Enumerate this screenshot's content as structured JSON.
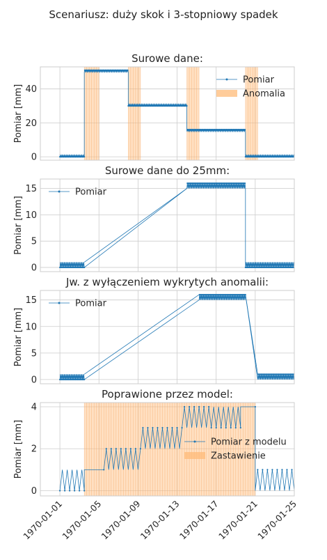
{
  "suptitle": "Scenariusz: duży skok i 3-stopniowy spadek",
  "colors": {
    "series": "#1f77b4",
    "anomaly_fill": "#ffbb78",
    "grid": "#cccccc",
    "axes_edge": "#cccccc",
    "background": "#ffffff"
  },
  "x_axis": {
    "type": "date",
    "range": [
      "1969-12-30",
      "1970-01-25"
    ],
    "tick_labels": [
      "1970-01-01",
      "1970-01-05",
      "1970-01-09",
      "1970-01-13",
      "1970-01-17",
      "1970-01-21",
      "1970-01-25"
    ],
    "tick_rotation_deg": 45
  },
  "chart_data": [
    {
      "type": "line",
      "title": "Surowe dane:",
      "ylabel": "Pomiar [mm]",
      "ylim": [
        -2,
        53
      ],
      "yticks": [
        0,
        20,
        40
      ],
      "legend_position": "top-right",
      "legend": [
        "Pomiar",
        "Anomalia"
      ],
      "oscillation": {
        "amplitude": 1,
        "period_days": 0.1
      },
      "series": [
        {
          "name": "Pomiar",
          "segments": [
            {
              "start": "1970-01-01",
              "end": "1970-01-03 12:00",
              "level": 0
            },
            {
              "start": "1970-01-03 12:00",
              "end": "1970-01-08",
              "level": 50
            },
            {
              "start": "1970-01-08",
              "end": "1970-01-14",
              "level": 30
            },
            {
              "start": "1970-01-14",
              "end": "1970-01-20",
              "level": 15
            },
            {
              "start": "1970-01-20",
              "end": "1970-01-25",
              "level": 0
            }
          ]
        }
      ],
      "anomaly_spans": [
        {
          "start": "1970-01-03 12:00",
          "end": "1970-01-05"
        },
        {
          "start": "1970-01-08",
          "end": "1970-01-09 06:00"
        },
        {
          "start": "1970-01-14",
          "end": "1970-01-15 06:00"
        },
        {
          "start": "1970-01-20",
          "end": "1970-01-21 06:00"
        }
      ]
    },
    {
      "type": "line",
      "title": "Surowe dane do 25mm:",
      "ylabel": "Pomiar [mm]",
      "ylim": [
        -0.8,
        16.8
      ],
      "yticks": [
        0,
        5,
        10,
        15
      ],
      "legend_position": "top-left",
      "legend": [
        "Pomiar"
      ],
      "oscillation": {
        "amplitude": 1,
        "period_days": 0.1
      },
      "series": [
        {
          "name": "Pomiar",
          "segments": [
            {
              "start": "1970-01-01",
              "end": "1970-01-03 12:00",
              "level": 0
            },
            {
              "start": "1970-01-14",
              "end": "1970-01-20",
              "level": 15
            },
            {
              "start": "1970-01-20",
              "end": "1970-01-25",
              "level": 0
            }
          ],
          "bridges": [
            {
              "from": [
                "1970-01-03 12:00",
                1
              ],
              "to": [
                "1970-01-14",
                15
              ]
            }
          ]
        }
      ]
    },
    {
      "type": "line",
      "title": "Jw. z wyłączeniem wykrytych anomalii:",
      "ylabel": "Pomiar [mm]",
      "ylim": [
        -0.8,
        16.8
      ],
      "yticks": [
        0,
        5,
        10,
        15
      ],
      "legend_position": "top-left",
      "legend": [
        "Pomiar"
      ],
      "oscillation": {
        "amplitude": 1,
        "period_days": 0.1
      },
      "series": [
        {
          "name": "Pomiar",
          "segments": [
            {
              "start": "1970-01-01",
              "end": "1970-01-03 12:00",
              "level": 0
            },
            {
              "start": "1970-01-15 06:00",
              "end": "1970-01-20",
              "level": 15
            },
            {
              "start": "1970-01-21 06:00",
              "end": "1970-01-25",
              "level": 0
            }
          ],
          "bridges": [
            {
              "from": [
                "1970-01-03 12:00",
                1
              ],
              "to": [
                "1970-01-15 06:00",
                16
              ]
            },
            {
              "from": [
                "1970-01-20",
                16
              ],
              "to": [
                "1970-01-21 06:00",
                1
              ]
            }
          ]
        }
      ]
    },
    {
      "type": "line",
      "title": "Poprawione przez model:",
      "ylabel": "Pomiar [mm]",
      "ylim": [
        -0.25,
        4.2
      ],
      "yticks": [
        0,
        2,
        4
      ],
      "legend_position": "center-right",
      "legend": [
        "Pomiar z modelu",
        "Zastawienie"
      ],
      "oscillation": {
        "amplitude": 1,
        "period_days": 0.5
      },
      "series": [
        {
          "name": "Pomiar z modelu",
          "segments": [
            {
              "start": "1970-01-01",
              "end": "1970-01-03 12:00",
              "level": 0
            },
            {
              "start": "1970-01-03 12:00",
              "end": "1970-01-05 12:00",
              "level": 1,
              "flat": true
            },
            {
              "start": "1970-01-05 12:00",
              "end": "1970-01-09 06:00",
              "level": 1
            },
            {
              "start": "1970-01-09 06:00",
              "end": "1970-01-13 12:00",
              "level": 2
            },
            {
              "start": "1970-01-13 12:00",
              "end": "1970-01-16 12:00",
              "level": 3
            },
            {
              "start": "1970-01-16 12:00",
              "end": "1970-01-19 12:00",
              "level": 3
            },
            {
              "start": "1970-01-19 12:00",
              "end": "1970-01-21",
              "level": 4,
              "flat": true
            },
            {
              "start": "1970-01-21",
              "end": "1970-01-25",
              "level": 0
            }
          ]
        }
      ],
      "anomaly_spans": [
        {
          "start": "1970-01-03 12:00",
          "end": "1970-01-21"
        }
      ]
    }
  ]
}
